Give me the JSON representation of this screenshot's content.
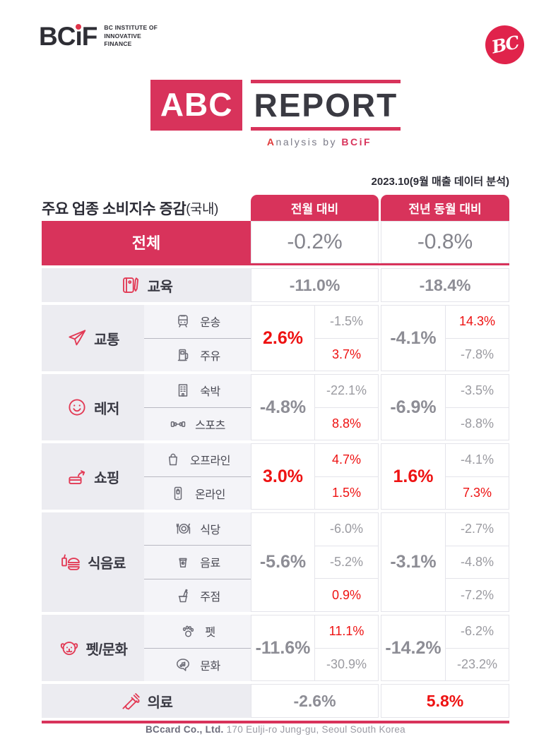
{
  "branding": {
    "bcif_wordmark": "BCiF",
    "bcif_tagline_lines": [
      "BC INSTITUTE OF",
      "INNOVATIVE",
      "FINANCE"
    ],
    "bc_badge": "BC",
    "report_logo": {
      "abc": "ABC",
      "report": "REPORT"
    },
    "report_subtitle": {
      "lead": "A",
      "rest": "nalysis by ",
      "brand": "BCiF"
    }
  },
  "colors": {
    "crimson": "#d8335b",
    "bright_red": "#ee1212",
    "gray_value": "#8d8d95",
    "category_bg": "#ececf1",
    "subcategory_bg": "#f4f4f8"
  },
  "meta": {
    "date_note": "2023.10(9월 매출 데이터 분석)"
  },
  "table": {
    "title": "주요 업종 소비지수 증감",
    "title_suffix": "(국내)",
    "col_month": "전월 대비",
    "col_year": "전년 동월 대비",
    "total": {
      "label": "전체",
      "mom": "-0.2%",
      "yoy": "-0.8%"
    },
    "rows": [
      {
        "category": "교육",
        "icon": "book-pencil-icon",
        "mom": "-11.0%",
        "mom_red": false,
        "yoy": "-18.4%",
        "yoy_red": false,
        "subs": []
      },
      {
        "category": "교통",
        "icon": "paper-plane-icon",
        "mom": "2.6%",
        "mom_red": true,
        "yoy": "-4.1%",
        "yoy_red": false,
        "subs": [
          {
            "label": "운송",
            "icon": "train-icon",
            "mom": "-1.5%",
            "mom_red": false,
            "yoy": "14.3%",
            "yoy_red": true
          },
          {
            "label": "주유",
            "icon": "fuel-pump-icon",
            "mom": "3.7%",
            "mom_red": true,
            "yoy": "-7.8%",
            "yoy_red": false
          }
        ]
      },
      {
        "category": "레저",
        "icon": "smiley-icon",
        "mom": "-4.8%",
        "mom_red": false,
        "yoy": "-6.9%",
        "yoy_red": false,
        "subs": [
          {
            "label": "숙박",
            "icon": "building-icon",
            "mom": "-22.1%",
            "mom_red": false,
            "yoy": "-3.5%",
            "yoy_red": false
          },
          {
            "label": "스포츠",
            "icon": "dumbbell-icon",
            "mom": "8.8%",
            "mom_red": true,
            "yoy": "-8.8%",
            "yoy_red": false
          }
        ]
      },
      {
        "category": "쇼핑",
        "icon": "card-payment-icon",
        "mom": "3.0%",
        "mom_red": true,
        "yoy": "1.6%",
        "yoy_red": true,
        "subs": [
          {
            "label": "오프라인",
            "icon": "shopping-bag-icon",
            "mom": "4.7%",
            "mom_red": true,
            "yoy": "-4.1%",
            "yoy_red": false
          },
          {
            "label": "온라인",
            "icon": "mobile-shopping-icon",
            "mom": "1.5%",
            "mom_red": true,
            "yoy": "7.3%",
            "yoy_red": true
          }
        ]
      },
      {
        "category": "식음료",
        "icon": "burger-drink-icon",
        "mom": "-5.6%",
        "mom_red": false,
        "yoy": "-3.1%",
        "yoy_red": false,
        "subs": [
          {
            "label": "식당",
            "icon": "plate-cutlery-icon",
            "mom": "-6.0%",
            "mom_red": false,
            "yoy": "-2.7%",
            "yoy_red": false
          },
          {
            "label": "음료",
            "icon": "coffee-cup-icon",
            "mom": "-5.2%",
            "mom_red": false,
            "yoy": "-4.8%",
            "yoy_red": false
          },
          {
            "label": "주점",
            "icon": "bottle-bucket-icon",
            "mom": "0.9%",
            "mom_red": true,
            "yoy": "-7.2%",
            "yoy_red": false
          }
        ]
      },
      {
        "category": "펫/문화",
        "icon": "dog-face-icon",
        "mom": "-11.6%",
        "mom_red": false,
        "yoy": "-14.2%",
        "yoy_red": false,
        "subs": [
          {
            "label": "펫",
            "icon": "paw-icon",
            "mom": "11.1%",
            "mom_red": true,
            "yoy": "-6.2%",
            "yoy_red": false
          },
          {
            "label": "문화",
            "icon": "speech-music-icon",
            "mom": "-30.9%",
            "mom_red": false,
            "yoy": "-23.2%",
            "yoy_red": false
          }
        ]
      },
      {
        "category": "의료",
        "icon": "syringe-icon",
        "mom": "-2.6%",
        "mom_red": false,
        "yoy": "5.8%",
        "yoy_red": true,
        "subs": []
      }
    ]
  },
  "footer": {
    "company": "BCcard Co., Ltd.",
    "address": "170 Eulji-ro Jung-gu, Seoul South Korea"
  }
}
